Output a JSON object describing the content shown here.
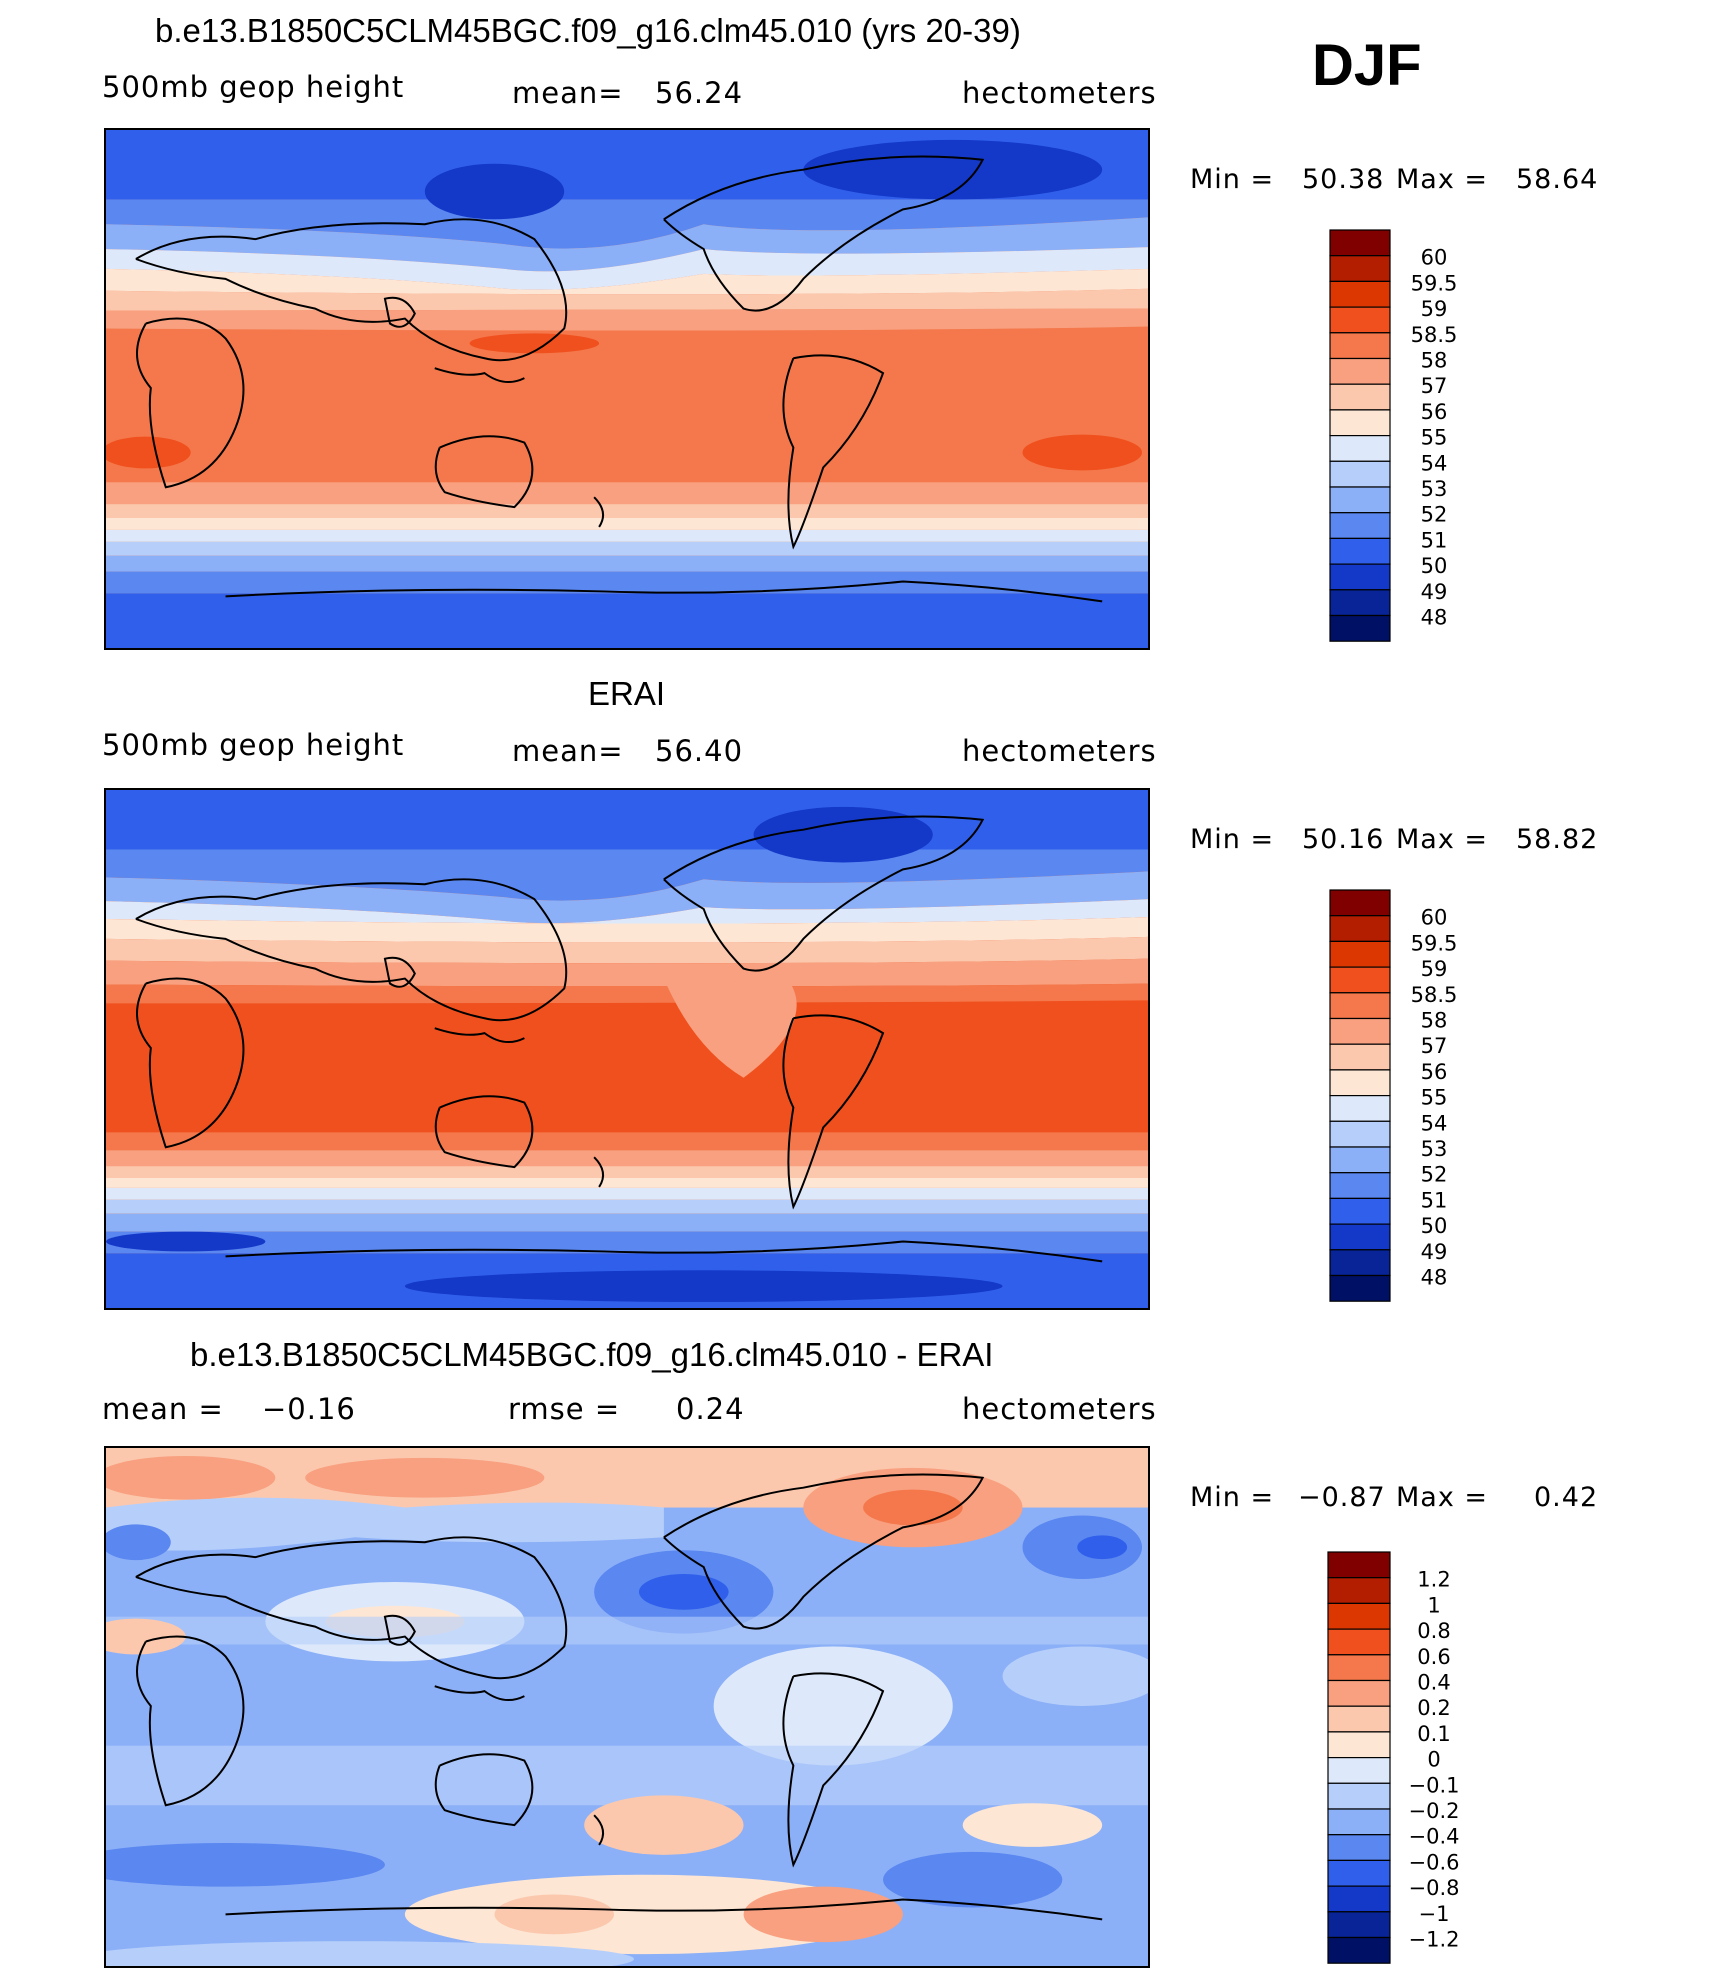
{
  "season": "DJF",
  "panels": [
    {
      "title": "b.e13.B1850C5CLM45BGC.f09_g16.clm45.010 (yrs 20-39)",
      "variable": "500mb geop height",
      "stat_label": "mean=",
      "stat_value": "56.24",
      "units": "hectometers",
      "min_label": "Min =",
      "min_value": "50.38",
      "max_label": "Max =",
      "max_value": "58.64",
      "colorbar_labels": [
        "60",
        "59.5",
        "59",
        "58.5",
        "58",
        "57",
        "56",
        "55",
        "54",
        "53",
        "52",
        "51",
        "50",
        "49",
        "48"
      ]
    },
    {
      "title": "ERAI",
      "variable": "500mb geop height",
      "stat_label": "mean=",
      "stat_value": "56.40",
      "units": "hectometers",
      "min_label": "Min =",
      "min_value": "50.16",
      "max_label": "Max =",
      "max_value": "58.82",
      "colorbar_labels": [
        "60",
        "59.5",
        "59",
        "58.5",
        "58",
        "57",
        "56",
        "55",
        "54",
        "53",
        "52",
        "51",
        "50",
        "49",
        "48"
      ]
    },
    {
      "title": "b.e13.B1850C5CLM45BGC.f09_g16.clm45.010 - ERAI",
      "variable": "",
      "stat_label": "mean =",
      "stat_value": "−0.16",
      "stat2_label": "rmse =",
      "stat2_value": "0.24",
      "units": "hectometers",
      "min_label": "Min =",
      "min_value": "−0.87",
      "max_label": "Max =",
      "max_value": "0.42",
      "colorbar_labels": [
        "1.2",
        "1",
        "0.8",
        "0.6",
        "0.4",
        "0.2",
        "0.1",
        "0",
        "−0.1",
        "−0.2",
        "−0.4",
        "−0.6",
        "−0.8",
        "−1",
        "−1.2"
      ]
    }
  ],
  "colors": {
    "abs": [
      "#800000",
      "#b41e00",
      "#dc3700",
      "#f0501e",
      "#f4784b",
      "#f8a07f",
      "#fbc8ae",
      "#fde6d4",
      "#dde9fb",
      "#b6cffa",
      "#8cb0f7",
      "#5a87f0",
      "#3060eb",
      "#1438c8",
      "#082496",
      "#001064"
    ],
    "diff": [
      "#800000",
      "#b41e00",
      "#dc3700",
      "#f0501e",
      "#f4784b",
      "#f8a07f",
      "#fbc8ae",
      "#fde6d4",
      "#dde9fb",
      "#b6cffa",
      "#8cb0f7",
      "#5a87f0",
      "#3060eb",
      "#1438c8",
      "#082496",
      "#001064"
    ]
  }
}
